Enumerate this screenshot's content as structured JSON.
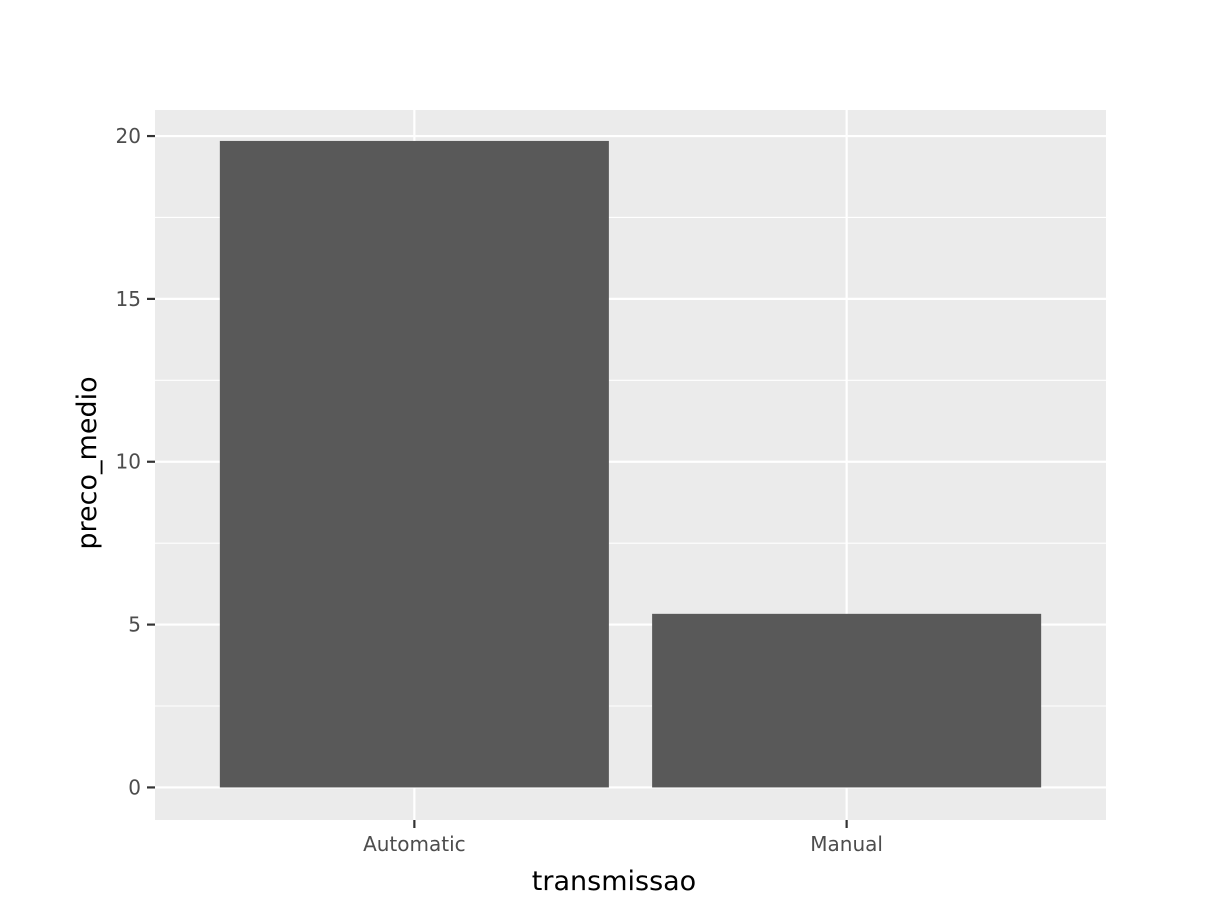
{
  "chart_data": {
    "type": "bar",
    "categories": [
      "Automatic",
      "Manual"
    ],
    "values": [
      19.85,
      5.33
    ],
    "title": "",
    "xlabel": "transmissao",
    "ylabel": "preco_medio",
    "ylim": [
      -1,
      20.8
    ],
    "yticks": [
      0,
      5,
      10,
      15,
      20
    ],
    "grid": true,
    "colors": {
      "panel": "#ebebeb",
      "bar": "#595959",
      "grid": "#ffffff",
      "tick_text": "#4d4d4d",
      "tick_mark": "#333333"
    }
  }
}
